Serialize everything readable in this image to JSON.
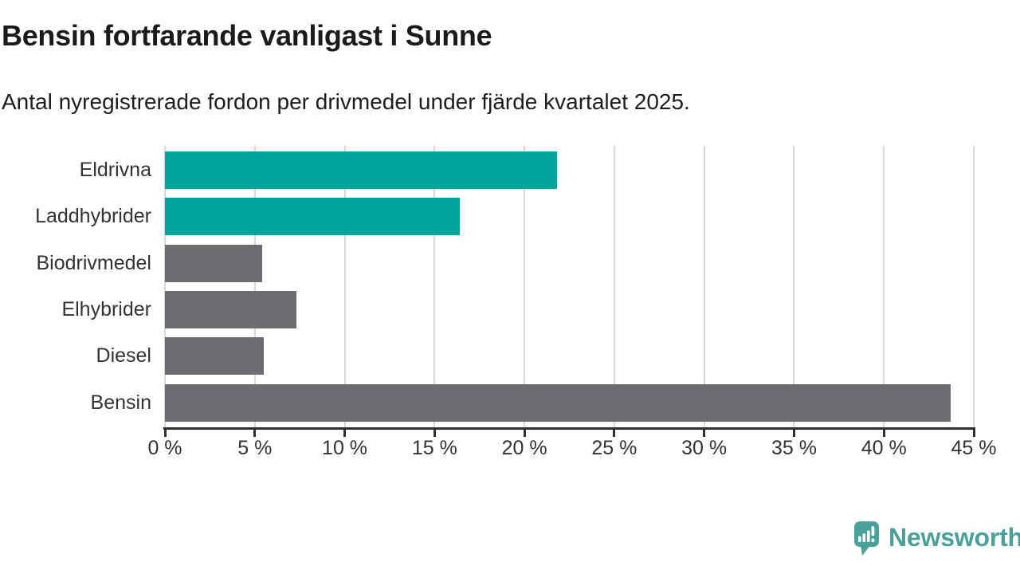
{
  "header": {
    "title": "Bensin fortfarande vanligast i Sunne",
    "subtitle": "Antal nyregistrerade fordon per drivmedel under fjärde kvartalet 2025."
  },
  "chart_data": {
    "type": "bar",
    "orientation": "horizontal",
    "title": "Bensin fortfarande vanligast i Sunne",
    "subtitle": "Antal nyregistrerade fordon per drivmedel under fjärde kvartalet 2025.",
    "categories": [
      "Eldrivna",
      "Laddhybrider",
      "Biodrivmedel",
      "Elhybrider",
      "Diesel",
      "Bensin"
    ],
    "values": [
      21.8,
      16.4,
      5.4,
      7.3,
      5.5,
      43.7
    ],
    "unit": "%",
    "bar_colors": [
      "#00a49a",
      "#00a49a",
      "#6c6b70",
      "#6c6b70",
      "#6c6b70",
      "#6c6b70"
    ],
    "xlabel": "",
    "ylabel": "",
    "xlim": [
      0,
      45
    ],
    "x_ticks": [
      0,
      5,
      10,
      15,
      20,
      25,
      30,
      35,
      40,
      45
    ],
    "x_tick_labels": [
      "0 %",
      "5 %",
      "10 %",
      "15 %",
      "20 %",
      "25 %",
      "30 %",
      "35 %",
      "40 %",
      "45 %"
    ],
    "grid": "vertical-gridlines-on",
    "legend": "none"
  },
  "colors": {
    "accent_teal": "#00a49a",
    "bar_gray": "#6c6b70",
    "gridline": "#d8d8d8",
    "axis": "#2f2f2f",
    "text": "#333333",
    "logo_teal": "#4ba19a"
  },
  "footer": {
    "brand": "Newsworthy",
    "logo_icon": "speech-bubble-bar-chart-icon"
  }
}
